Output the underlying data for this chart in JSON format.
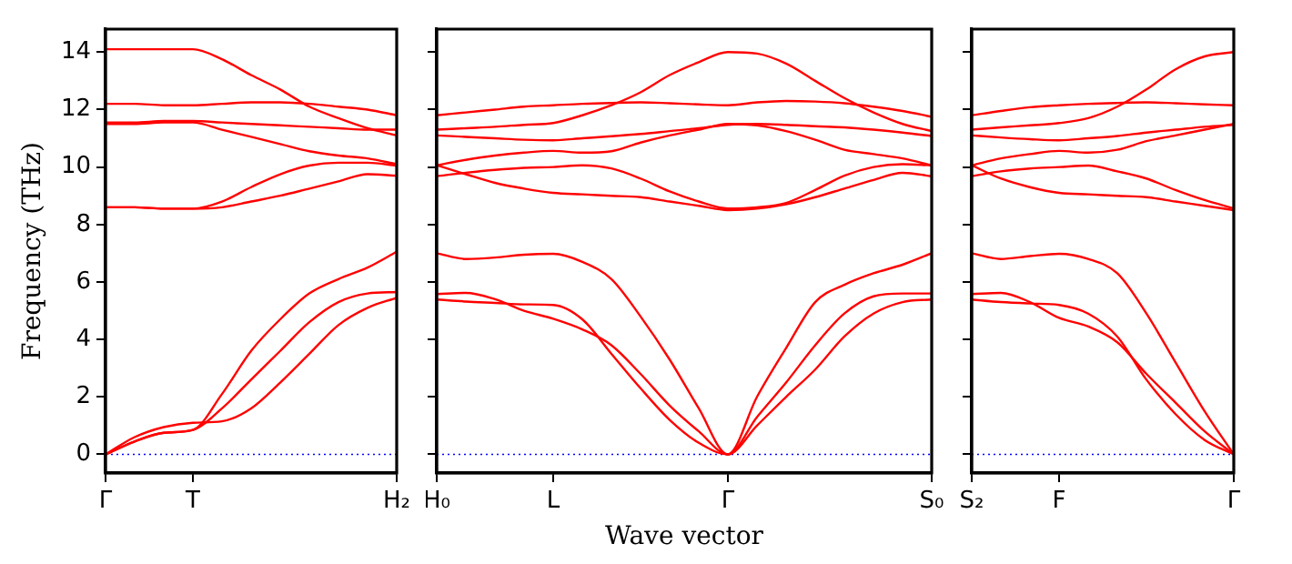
{
  "chart_data": [
    {
      "type": "line",
      "ylabel": "Frequency (THz)",
      "categories": [
        "Γ",
        null,
        null,
        "T",
        null,
        null,
        null,
        null,
        null,
        null,
        "H₂"
      ],
      "ylim": [
        -0.65,
        14.8
      ],
      "yticks": [
        0,
        2,
        4,
        6,
        8,
        10,
        12,
        14
      ],
      "grid": false,
      "legend": false,
      "marker": "none",
      "line_style": "solid",
      "ref_lines": [
        {
          "axis": "y",
          "value": 0,
          "color": "#0000ff",
          "line_style": "dotted"
        }
      ],
      "series": [
        {
          "color": "#ff0000",
          "values": [
            14.1,
            14.1,
            14.1,
            14.1,
            13.75,
            13.2,
            12.7,
            12.1,
            11.7,
            11.35,
            11.1
          ]
        },
        {
          "color": "#ff0000",
          "values": [
            12.2,
            12.2,
            12.15,
            12.15,
            12.2,
            12.25,
            12.25,
            12.2,
            12.1,
            12.0,
            11.8
          ]
        },
        {
          "color": "#ff0000",
          "values": [
            11.55,
            11.55,
            11.6,
            11.6,
            11.55,
            11.5,
            11.45,
            11.4,
            11.35,
            11.3,
            11.3
          ]
        },
        {
          "color": "#ff0000",
          "values": [
            11.5,
            11.5,
            11.55,
            11.55,
            11.3,
            11.05,
            10.8,
            10.55,
            10.4,
            10.3,
            10.1
          ]
        },
        {
          "color": "#ff0000",
          "values": [
            8.6,
            8.6,
            8.55,
            8.55,
            8.8,
            9.3,
            9.75,
            10.05,
            10.15,
            10.15,
            10.05
          ]
        },
        {
          "color": "#ff0000",
          "values": [
            8.6,
            8.6,
            8.55,
            8.55,
            8.6,
            8.8,
            9.0,
            9.25,
            9.5,
            9.75,
            9.7
          ]
        },
        {
          "color": "#ff0000",
          "values": [
            0,
            0.45,
            0.75,
            0.85,
            2.1,
            3.6,
            4.7,
            5.6,
            6.1,
            6.5,
            7.05
          ]
        },
        {
          "color": "#ff0000",
          "values": [
            0,
            0.45,
            0.75,
            0.85,
            1.6,
            2.6,
            3.6,
            4.6,
            5.3,
            5.6,
            5.65
          ]
        },
        {
          "color": "#ff0000",
          "values": [
            0,
            0.6,
            0.95,
            1.1,
            1.15,
            1.6,
            2.5,
            3.5,
            4.5,
            5.1,
            5.45
          ]
        }
      ]
    },
    {
      "type": "line",
      "xlabel": "Wave vector",
      "categories": [
        "H₀",
        null,
        null,
        null,
        "L",
        null,
        null,
        null,
        null,
        null,
        "Γ",
        null,
        null,
        null,
        null,
        null,
        null,
        "S₀"
      ],
      "ylim": [
        -0.65,
        14.8
      ],
      "yticks": [
        0,
        2,
        4,
        6,
        8,
        10,
        12,
        14
      ],
      "tick_labels": "x",
      "grid": false,
      "legend": false,
      "marker": "none",
      "line_style": "solid",
      "ref_lines": [
        {
          "axis": "y",
          "value": 0,
          "color": "#0000ff",
          "line_style": "dotted"
        }
      ],
      "series": [
        {
          "color": "#ff0000",
          "values": [
            11.8,
            11.9,
            12.0,
            12.1,
            12.15,
            12.2,
            12.23,
            12.25,
            12.22,
            12.18,
            12.15,
            12.25,
            12.3,
            12.28,
            12.22,
            12.1,
            11.95,
            11.75
          ]
        },
        {
          "color": "#ff0000",
          "values": [
            11.3,
            11.35,
            11.4,
            11.47,
            11.53,
            11.8,
            12.15,
            12.6,
            13.2,
            13.65,
            14.0,
            13.95,
            13.6,
            13.0,
            12.4,
            11.9,
            11.5,
            11.25
          ]
        },
        {
          "color": "#ff0000",
          "values": [
            11.1,
            11.05,
            11.0,
            10.95,
            10.93,
            11.0,
            11.07,
            11.15,
            11.25,
            11.35,
            11.47,
            11.5,
            11.47,
            11.42,
            11.38,
            11.3,
            11.2,
            11.08
          ]
        },
        {
          "color": "#ff0000",
          "values": [
            10.06,
            10.25,
            10.4,
            10.5,
            10.56,
            10.5,
            10.55,
            10.85,
            11.1,
            11.3,
            11.5,
            11.45,
            11.25,
            10.95,
            10.6,
            10.45,
            10.3,
            10.06
          ]
        },
        {
          "color": "#ff0000",
          "values": [
            9.68,
            9.8,
            9.9,
            9.97,
            10.0,
            10.06,
            9.95,
            9.6,
            9.15,
            8.8,
            8.56,
            8.6,
            8.75,
            9.2,
            9.7,
            10.0,
            10.1,
            10.06
          ]
        },
        {
          "color": "#ff0000",
          "values": [
            10.06,
            9.75,
            9.45,
            9.25,
            9.1,
            9.05,
            9.0,
            8.95,
            8.8,
            8.65,
            8.5,
            8.55,
            8.7,
            8.95,
            9.25,
            9.55,
            9.8,
            9.68
          ]
        },
        {
          "color": "#ff0000",
          "values": [
            7.0,
            6.8,
            6.85,
            6.95,
            6.98,
            6.7,
            6.1,
            4.8,
            3.3,
            1.6,
            0,
            2.0,
            3.7,
            5.3,
            5.9,
            6.3,
            6.6,
            7.0
          ]
        },
        {
          "color": "#ff0000",
          "values": [
            5.58,
            5.62,
            5.4,
            5.0,
            4.72,
            4.35,
            3.8,
            2.8,
            1.7,
            0.8,
            0,
            1.3,
            2.5,
            3.8,
            4.9,
            5.5,
            5.6,
            5.6
          ]
        },
        {
          "color": "#ff0000",
          "values": [
            5.39,
            5.32,
            5.27,
            5.22,
            5.2,
            4.7,
            3.5,
            2.3,
            1.2,
            0.4,
            0,
            1.0,
            2.0,
            2.95,
            4.1,
            4.9,
            5.3,
            5.39
          ]
        }
      ]
    },
    {
      "type": "line",
      "categories": [
        "S₂",
        null,
        null,
        "F",
        null,
        null,
        null,
        null,
        null,
        "Γ"
      ],
      "ylim": [
        -0.65,
        14.8
      ],
      "yticks": [
        0,
        2,
        4,
        6,
        8,
        10,
        12,
        14
      ],
      "tick_labels": "x",
      "grid": false,
      "legend": false,
      "marker": "none",
      "line_style": "solid",
      "ref_lines": [
        {
          "axis": "y",
          "value": 0,
          "color": "#0000ff",
          "line_style": "dotted"
        }
      ],
      "series": [
        {
          "color": "#ff0000",
          "values": [
            11.8,
            11.95,
            12.08,
            12.15,
            12.2,
            12.23,
            12.25,
            12.22,
            12.18,
            12.15
          ]
        },
        {
          "color": "#ff0000",
          "values": [
            11.3,
            11.38,
            11.45,
            11.53,
            11.7,
            12.1,
            12.7,
            13.4,
            13.85,
            14.0
          ]
        },
        {
          "color": "#ff0000",
          "values": [
            11.1,
            11.03,
            10.97,
            10.93,
            11.0,
            11.08,
            11.2,
            11.3,
            11.4,
            11.47
          ]
        },
        {
          "color": "#ff0000",
          "values": [
            10.06,
            10.3,
            10.45,
            10.56,
            10.5,
            10.6,
            10.9,
            11.1,
            11.3,
            11.5
          ]
        },
        {
          "color": "#ff0000",
          "values": [
            9.68,
            9.85,
            9.95,
            10.0,
            10.05,
            9.85,
            9.6,
            9.2,
            8.85,
            8.56
          ]
        },
        {
          "color": "#ff0000",
          "values": [
            10.06,
            9.6,
            9.3,
            9.1,
            9.05,
            9.0,
            8.95,
            8.8,
            8.65,
            8.5
          ]
        },
        {
          "color": "#ff0000",
          "values": [
            7.0,
            6.8,
            6.9,
            6.98,
            6.8,
            6.3,
            4.9,
            3.2,
            1.5,
            0
          ]
        },
        {
          "color": "#ff0000",
          "values": [
            5.58,
            5.62,
            5.3,
            4.75,
            4.45,
            3.9,
            2.8,
            1.8,
            0.8,
            0
          ]
        },
        {
          "color": "#ff0000",
          "values": [
            5.39,
            5.3,
            5.25,
            5.2,
            4.9,
            4.1,
            2.6,
            1.4,
            0.5,
            0
          ]
        }
      ]
    }
  ]
}
